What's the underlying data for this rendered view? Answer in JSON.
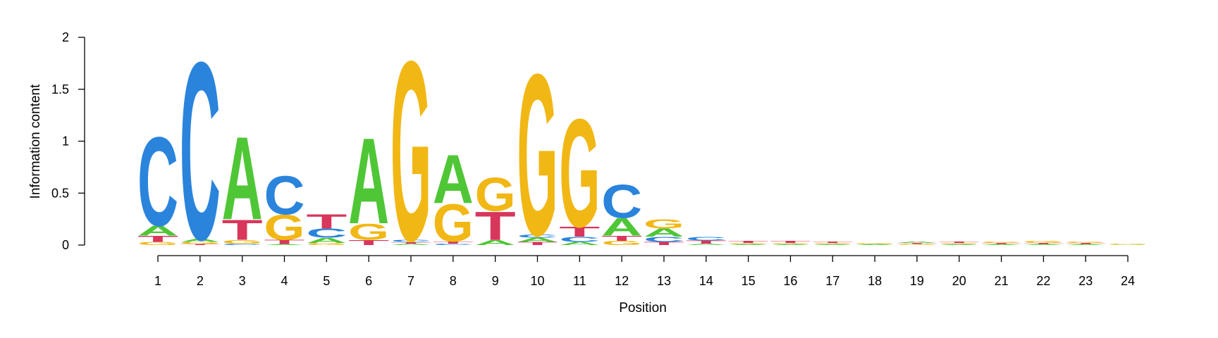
{
  "chart_data": {
    "type": "sequence-logo",
    "xlabel": "Position",
    "ylabel": "Information content",
    "ylim": [
      0,
      2
    ],
    "yticks": [
      0,
      0.5,
      1,
      1.5,
      2
    ],
    "yticklabels": [
      "0",
      "0.5",
      "1",
      "1.5",
      "2"
    ],
    "positions": [
      "1",
      "2",
      "3",
      "4",
      "5",
      "6",
      "7",
      "8",
      "9",
      "10",
      "11",
      "12",
      "13",
      "14",
      "15",
      "16",
      "17",
      "18",
      "19",
      "20",
      "21",
      "22",
      "23",
      "24"
    ],
    "letter_colors": {
      "A": "#4fc636",
      "C": "#2a84dc",
      "G": "#f1b714",
      "T": "#d8365b"
    },
    "columns": [
      [
        [
          "G",
          0.03
        ],
        [
          "T",
          0.06
        ],
        [
          "A",
          0.1
        ],
        [
          "C",
          0.88
        ]
      ],
      [
        [
          "T",
          0.01
        ],
        [
          "G",
          0.02
        ],
        [
          "A",
          0.03
        ],
        [
          "C",
          1.76
        ]
      ],
      [
        [
          "C",
          0.015
        ],
        [
          "G",
          0.035
        ],
        [
          "T",
          0.2
        ],
        [
          "A",
          0.82
        ]
      ],
      [
        [
          "A",
          0.01
        ],
        [
          "T",
          0.04
        ],
        [
          "G",
          0.25
        ],
        [
          "C",
          0.38
        ]
      ],
      [
        [
          "G",
          0.02
        ],
        [
          "A",
          0.05
        ],
        [
          "C",
          0.09
        ],
        [
          "T",
          0.14
        ]
      ],
      [
        [
          "T",
          0.05
        ],
        [
          "G",
          0.16
        ],
        [
          "A",
          0.85
        ]
      ],
      [
        [
          "A",
          0.015
        ],
        [
          "T",
          0.015
        ],
        [
          "C",
          0.02
        ],
        [
          "G",
          1.78
        ]
      ],
      [
        [
          "C",
          0.015
        ],
        [
          "T",
          0.02
        ],
        [
          "G",
          0.37
        ],
        [
          "A",
          0.48
        ]
      ],
      [
        [
          "A",
          0.05
        ],
        [
          "T",
          0.28
        ],
        [
          "G",
          0.33
        ]
      ],
      [
        [
          "T",
          0.03
        ],
        [
          "A",
          0.04
        ],
        [
          "C",
          0.03
        ],
        [
          "G",
          1.6
        ]
      ],
      [
        [
          "A",
          0.03
        ],
        [
          "C",
          0.05
        ],
        [
          "T",
          0.1
        ],
        [
          "G",
          1.07
        ]
      ],
      [
        [
          "G",
          0.04
        ],
        [
          "T",
          0.05
        ],
        [
          "A",
          0.17
        ],
        [
          "C",
          0.33
        ]
      ],
      [
        [
          "T",
          0.03
        ],
        [
          "C",
          0.05
        ],
        [
          "A",
          0.08
        ],
        [
          "G",
          0.09
        ]
      ],
      [
        [
          "A",
          0.015
        ],
        [
          "T",
          0.03
        ],
        [
          "C",
          0.035
        ]
      ],
      [
        [
          "A",
          0.01
        ],
        [
          "G",
          0.01
        ],
        [
          "T",
          0.02
        ]
      ],
      [
        [
          "A",
          0.01
        ],
        [
          "G",
          0.01
        ],
        [
          "T",
          0.02
        ]
      ],
      [
        [
          "A",
          0.01
        ],
        [
          "G",
          0.01
        ],
        [
          "T",
          0.015
        ]
      ],
      [
        [
          "A",
          0.01
        ],
        [
          "G",
          0.01
        ]
      ],
      [
        [
          "G",
          0.01
        ],
        [
          "T",
          0.01
        ],
        [
          "A",
          0.015
        ]
      ],
      [
        [
          "A",
          0.01
        ],
        [
          "G",
          0.01
        ],
        [
          "T",
          0.015
        ]
      ],
      [
        [
          "A",
          0.01
        ],
        [
          "T",
          0.01
        ],
        [
          "G",
          0.015
        ]
      ],
      [
        [
          "A",
          0.01
        ],
        [
          "T",
          0.01
        ],
        [
          "G",
          0.02
        ]
      ],
      [
        [
          "A",
          0.01
        ],
        [
          "T",
          0.01
        ],
        [
          "G",
          0.015
        ]
      ],
      [
        [
          "A",
          0.005
        ],
        [
          "G",
          0.008
        ]
      ]
    ]
  }
}
